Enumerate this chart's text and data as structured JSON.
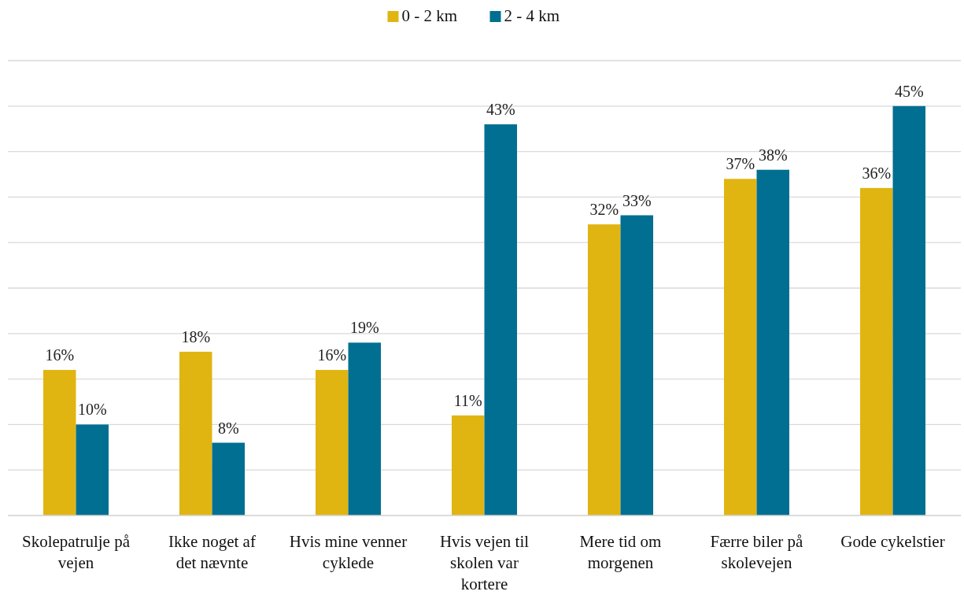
{
  "chart_data": {
    "type": "bar",
    "categories": [
      "Skolepatrulje på vejen",
      "Ikke noget af det nævnte",
      "Hvis mine venner cyklede",
      "Hvis vejen til skolen var kortere",
      "Mere tid om morgenen",
      "Færre biler på skolevejen",
      "Gode cykelstier"
    ],
    "series": [
      {
        "name": "0 - 2 km",
        "color": "#e0b512",
        "values": [
          16,
          18,
          16,
          11,
          32,
          37,
          36
        ],
        "value_labels": [
          "16%",
          "18%",
          "16%",
          "11%",
          "32%",
          "37%",
          "36%"
        ]
      },
      {
        "name": "2 - 4 km",
        "color": "#006f91",
        "values": [
          10,
          8,
          19,
          43,
          33,
          38,
          45
        ],
        "value_labels": [
          "10%",
          "8%",
          "19%",
          "43%",
          "33%",
          "38%",
          "45%"
        ]
      }
    ],
    "ylim": [
      0,
      50
    ],
    "yticks": [
      {
        "value": 0,
        "label": null
      },
      {
        "value": 5,
        "label": null
      },
      {
        "value": 10,
        "label": null
      },
      {
        "value": 15,
        "label": null
      },
      {
        "value": 20,
        "label": null
      },
      {
        "value": 25,
        "label": null
      },
      {
        "value": 30,
        "label": null
      },
      {
        "value": 35,
        "label": null
      },
      {
        "value": 40,
        "label": null
      },
      {
        "value": 45,
        "label": null
      },
      {
        "value": 50,
        "label": null
      }
    ],
    "grid": "y",
    "legend": "top",
    "tick_labels": "x"
  }
}
